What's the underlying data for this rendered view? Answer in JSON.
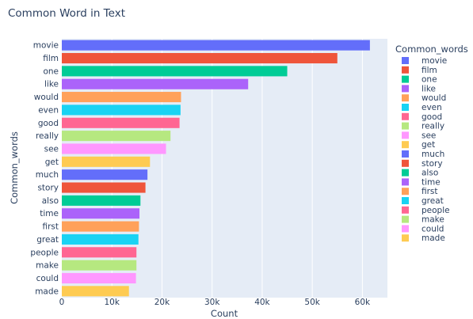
{
  "chart_data": {
    "type": "bar",
    "orientation": "horizontal",
    "title": "Common Word in Text",
    "xlabel": "Count",
    "ylabel": "Common_words",
    "legend_title": "Common_words",
    "legend_position": "right",
    "grid": true,
    "plot_background": "#e5ecf6",
    "xlim": [
      0,
      65000
    ],
    "xticks": [
      0,
      10000,
      20000,
      30000,
      40000,
      50000,
      60000
    ],
    "xtick_labels": [
      "0",
      "10k",
      "20k",
      "30k",
      "40k",
      "50k",
      "60k"
    ],
    "categories": [
      "movie",
      "film",
      "one",
      "like",
      "would",
      "even",
      "good",
      "really",
      "see",
      "get",
      "much",
      "story",
      "also",
      "time",
      "first",
      "great",
      "people",
      "make",
      "could",
      "made"
    ],
    "values": [
      61500,
      55000,
      45000,
      37200,
      23800,
      23700,
      23500,
      21700,
      20800,
      17600,
      17100,
      16700,
      15700,
      15500,
      15400,
      15300,
      14900,
      14900,
      14800,
      13400
    ],
    "colors": [
      "#636efa",
      "#ef553b",
      "#00cc96",
      "#ab63fa",
      "#ffa15a",
      "#19d3f3",
      "#ff6692",
      "#b6e880",
      "#ff97ff",
      "#fecb52",
      "#636efa",
      "#ef553b",
      "#00cc96",
      "#ab63fa",
      "#ffa15a",
      "#19d3f3",
      "#ff6692",
      "#b6e880",
      "#ff97ff",
      "#fecb52"
    ]
  }
}
